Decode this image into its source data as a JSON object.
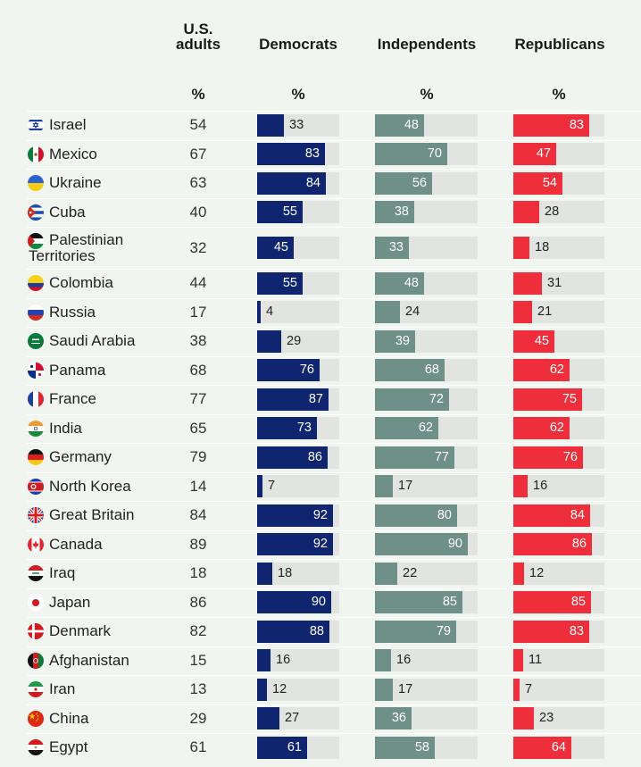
{
  "header": {
    "us_adults": "U.S.\nadults",
    "democrats": "Democrats",
    "independents": "Independents",
    "republicans": "Republicans",
    "percent_label": "%"
  },
  "colors": {
    "democrats": "#0f2570",
    "independents": "#6f8f89",
    "republicans": "#ee2e3a",
    "track": "#e2e4e1"
  },
  "chart_data": {
    "type": "table",
    "columns": [
      "U.S. adults",
      "Democrats",
      "Independents",
      "Republicans"
    ],
    "unit": "%",
    "rows": [
      {
        "country": "Israel",
        "flag": "israel-flag-icon",
        "us": 54,
        "dem": 33,
        "ind": 48,
        "rep": 83
      },
      {
        "country": "Mexico",
        "flag": "mexico-flag-icon",
        "us": 67,
        "dem": 83,
        "ind": 70,
        "rep": 47
      },
      {
        "country": "Ukraine",
        "flag": "ukraine-flag-icon",
        "us": 63,
        "dem": 84,
        "ind": 56,
        "rep": 54
      },
      {
        "country": "Cuba",
        "flag": "cuba-flag-icon",
        "us": 40,
        "dem": 55,
        "ind": 38,
        "rep": 28
      },
      {
        "country": "Palestinian Territories",
        "flag": "palestine-flag-icon",
        "us": 32,
        "dem": 45,
        "ind": 33,
        "rep": 18
      },
      {
        "country": "Colombia",
        "flag": "colombia-flag-icon",
        "us": 44,
        "dem": 55,
        "ind": 48,
        "rep": 31
      },
      {
        "country": "Russia",
        "flag": "russia-flag-icon",
        "us": 17,
        "dem": 4,
        "ind": 24,
        "rep": 21
      },
      {
        "country": "Saudi Arabia",
        "flag": "saudi-arabia-flag-icon",
        "us": 38,
        "dem": 29,
        "ind": 39,
        "rep": 45
      },
      {
        "country": "Panama",
        "flag": "panama-flag-icon",
        "us": 68,
        "dem": 76,
        "ind": 68,
        "rep": 62
      },
      {
        "country": "France",
        "flag": "france-flag-icon",
        "us": 77,
        "dem": 87,
        "ind": 72,
        "rep": 75
      },
      {
        "country": "India",
        "flag": "india-flag-icon",
        "us": 65,
        "dem": 73,
        "ind": 62,
        "rep": 62
      },
      {
        "country": "Germany",
        "flag": "germany-flag-icon",
        "us": 79,
        "dem": 86,
        "ind": 77,
        "rep": 76
      },
      {
        "country": "North Korea",
        "flag": "north-korea-flag-icon",
        "us": 14,
        "dem": 7,
        "ind": 17,
        "rep": 16
      },
      {
        "country": "Great Britain",
        "flag": "great-britain-flag-icon",
        "us": 84,
        "dem": 92,
        "ind": 80,
        "rep": 84
      },
      {
        "country": "Canada",
        "flag": "canada-flag-icon",
        "us": 89,
        "dem": 92,
        "ind": 90,
        "rep": 86
      },
      {
        "country": "Iraq",
        "flag": "iraq-flag-icon",
        "us": 18,
        "dem": 18,
        "ind": 22,
        "rep": 12
      },
      {
        "country": "Japan",
        "flag": "japan-flag-icon",
        "us": 86,
        "dem": 90,
        "ind": 85,
        "rep": 85
      },
      {
        "country": "Denmark",
        "flag": "denmark-flag-icon",
        "us": 82,
        "dem": 88,
        "ind": 79,
        "rep": 83
      },
      {
        "country": "Afghanistan",
        "flag": "afghanistan-flag-icon",
        "us": 15,
        "dem": 16,
        "ind": 16,
        "rep": 11
      },
      {
        "country": "Iran",
        "flag": "iran-flag-icon",
        "us": 13,
        "dem": 12,
        "ind": 17,
        "rep": 7
      },
      {
        "country": "China",
        "flag": "china-flag-icon",
        "us": 29,
        "dem": 27,
        "ind": 36,
        "rep": 23
      },
      {
        "country": "Egypt",
        "flag": "egypt-flag-icon",
        "us": 61,
        "dem": 61,
        "ind": 58,
        "rep": 64
      }
    ]
  }
}
